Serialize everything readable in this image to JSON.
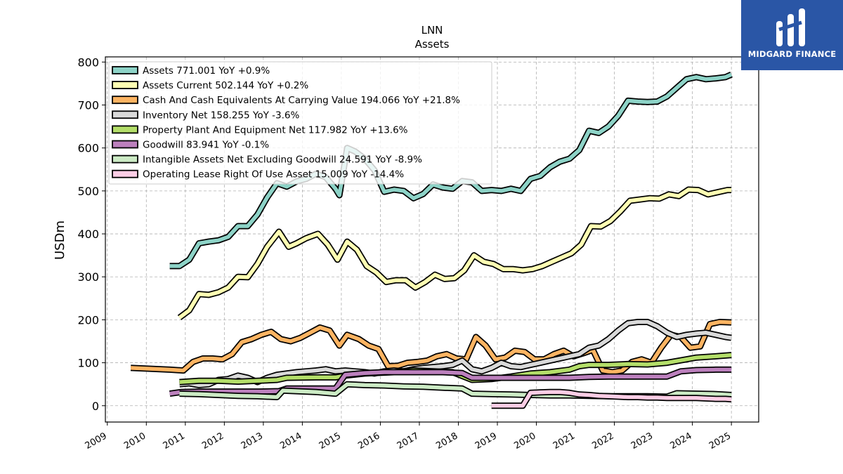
{
  "brand": {
    "name": "MIDGARD FINANCE",
    "color": "#2a56a6"
  },
  "chart_data": {
    "type": "line",
    "title": "LNN",
    "subtitle": "Assets",
    "ylabel": "USDm",
    "xlabel": "",
    "xlim": [
      2008.95,
      2025.7
    ],
    "ylim": [
      -38,
      812
    ],
    "yticks": [
      0,
      100,
      200,
      300,
      400,
      500,
      600,
      700,
      800
    ],
    "xticks": [
      "2009",
      "2010",
      "2011",
      "2012",
      "2013",
      "2014",
      "2015",
      "2016",
      "2017",
      "2018",
      "2019",
      "2020",
      "2021",
      "2022",
      "2023",
      "2024",
      "2025"
    ],
    "grid": true,
    "legend_position": "top-left",
    "series": [
      {
        "name": "Assets",
        "legend": "Assets  771.001 YoY +0.9%",
        "color": "#8dd3c7",
        "x": [
          2010.6,
          2010.85,
          2011.1,
          2011.35,
          2011.6,
          2011.85,
          2012.1,
          2012.35,
          2012.6,
          2012.85,
          2013.1,
          2013.35,
          2013.6,
          2013.85,
          2014.1,
          2014.35,
          2014.6,
          2014.85,
          2014.95,
          2015.15,
          2015.35,
          2015.6,
          2015.85,
          2016.1,
          2016.35,
          2016.6,
          2016.85,
          2017.1,
          2017.35,
          2017.6,
          2017.85,
          2018.1,
          2018.35,
          2018.6,
          2018.85,
          2019.1,
          2019.35,
          2019.6,
          2019.85,
          2020.1,
          2020.35,
          2020.6,
          2020.85,
          2021.1,
          2021.35,
          2021.6,
          2021.85,
          2022.1,
          2022.35,
          2022.6,
          2022.85,
          2023.1,
          2023.35,
          2023.6,
          2023.85,
          2024.1,
          2024.35,
          2024.6,
          2024.85,
          2025.0
        ],
        "y": [
          325,
          325,
          340,
          378,
          382,
          385,
          393,
          418,
          418,
          445,
          485,
          518,
          510,
          522,
          528,
          540,
          532,
          505,
          490,
          600,
          592,
          575,
          548,
          498,
          503,
          500,
          483,
          493,
          515,
          508,
          505,
          523,
          520,
          500,
          502,
          500,
          505,
          500,
          528,
          535,
          555,
          568,
          575,
          595,
          640,
          635,
          650,
          675,
          710,
          708,
          707,
          708,
          720,
          740,
          760,
          765,
          760,
          762,
          765,
          771
        ]
      },
      {
        "name": "Assets Current",
        "legend": "Assets Current  502.144 YoY +0.2%",
        "color": "#ffffb3",
        "x": [
          2010.85,
          2011.1,
          2011.35,
          2011.6,
          2011.85,
          2012.1,
          2012.35,
          2012.6,
          2012.85,
          2013.1,
          2013.4,
          2013.65,
          2013.85,
          2014.1,
          2014.4,
          2014.65,
          2014.9,
          2015.15,
          2015.4,
          2015.65,
          2015.9,
          2016.15,
          2016.4,
          2016.65,
          2016.9,
          2017.15,
          2017.4,
          2017.65,
          2017.9,
          2018.15,
          2018.4,
          2018.65,
          2018.9,
          2019.15,
          2019.4,
          2019.65,
          2019.9,
          2020.15,
          2020.4,
          2020.65,
          2020.9,
          2021.15,
          2021.4,
          2021.65,
          2021.9,
          2022.15,
          2022.4,
          2022.65,
          2022.9,
          2023.15,
          2023.4,
          2023.65,
          2023.9,
          2024.15,
          2024.4,
          2024.65,
          2024.9,
          2025.0
        ],
        "y": [
          205,
          222,
          260,
          258,
          264,
          275,
          300,
          299,
          330,
          370,
          405,
          370,
          378,
          390,
          400,
          375,
          340,
          382,
          363,
          325,
          310,
          288,
          292,
          292,
          275,
          288,
          305,
          295,
          297,
          315,
          350,
          335,
          330,
          318,
          318,
          315,
          318,
          325,
          335,
          345,
          355,
          375,
          418,
          417,
          430,
          452,
          477,
          480,
          483,
          482,
          492,
          488,
          503,
          502,
          492,
          497,
          502,
          502
        ]
      },
      {
        "name": "Cash And Cash Equivalents At Carrying Value",
        "legend": "Cash And Cash Equivalents At Carrying Value  194.066 YoY +21.8%",
        "color": "#fdb462",
        "x": [
          2009.6,
          2010.1,
          2010.6,
          2010.95,
          2011.2,
          2011.45,
          2011.7,
          2011.95,
          2012.2,
          2012.45,
          2012.7,
          2012.95,
          2013.2,
          2013.45,
          2013.7,
          2013.95,
          2014.2,
          2014.45,
          2014.7,
          2014.95,
          2015.15,
          2015.45,
          2015.7,
          2015.95,
          2016.2,
          2016.45,
          2016.7,
          2016.95,
          2017.2,
          2017.45,
          2017.7,
          2017.95,
          2018.2,
          2018.45,
          2018.7,
          2018.95,
          2019.2,
          2019.45,
          2019.7,
          2019.95,
          2020.2,
          2020.45,
          2020.7,
          2020.95,
          2021.2,
          2021.45,
          2021.7,
          2021.95,
          2022.2,
          2022.45,
          2022.7,
          2022.95,
          2023.2,
          2023.45,
          2023.7,
          2023.95,
          2024.2,
          2024.45,
          2024.7,
          2025.0
        ],
        "y": [
          88,
          86,
          84,
          82,
          102,
          110,
          110,
          108,
          120,
          148,
          155,
          165,
          172,
          155,
          150,
          158,
          170,
          182,
          175,
          140,
          165,
          155,
          140,
          132,
          92,
          93,
          100,
          102,
          105,
          115,
          120,
          110,
          108,
          160,
          140,
          108,
          112,
          128,
          125,
          108,
          108,
          120,
          128,
          115,
          122,
          130,
          82,
          78,
          82,
          102,
          108,
          100,
          135,
          165,
          160,
          135,
          138,
          190,
          195,
          194
        ]
      },
      {
        "name": "Inventory Net",
        "legend": "Inventory Net  158.255 YoY -3.6%",
        "color": "#d9d9d9",
        "x": [
          2010.85,
          2011.1,
          2011.35,
          2011.6,
          2011.85,
          2012.1,
          2012.35,
          2012.6,
          2012.85,
          2013.1,
          2013.35,
          2013.6,
          2013.85,
          2014.1,
          2014.35,
          2014.6,
          2014.85,
          2015.1,
          2015.35,
          2015.6,
          2015.85,
          2016.1,
          2016.35,
          2016.6,
          2016.85,
          2017.1,
          2017.35,
          2017.6,
          2017.85,
          2018.1,
          2018.35,
          2018.6,
          2018.85,
          2019.1,
          2019.35,
          2019.6,
          2019.85,
          2020.1,
          2020.35,
          2020.6,
          2020.85,
          2021.1,
          2021.35,
          2021.6,
          2021.85,
          2022.1,
          2022.35,
          2022.6,
          2022.85,
          2023.1,
          2023.35,
          2023.6,
          2023.85,
          2024.1,
          2024.35,
          2024.6,
          2024.85,
          2025.0
        ],
        "y": [
          50,
          52,
          48,
          50,
          60,
          62,
          70,
          65,
          55,
          65,
          72,
          75,
          78,
          80,
          82,
          85,
          80,
          82,
          80,
          78,
          75,
          80,
          82,
          80,
          85,
          88,
          90,
          92,
          95,
          105,
          85,
          80,
          88,
          100,
          92,
          90,
          95,
          100,
          105,
          110,
          115,
          120,
          135,
          140,
          155,
          175,
          192,
          195,
          195,
          185,
          170,
          160,
          165,
          168,
          170,
          165,
          160,
          158
        ]
      },
      {
        "name": "Property Plant And Equipment Net",
        "legend": "Property Plant And Equipment Net  117.982 YoY +13.6%",
        "color": "#b3de69",
        "x": [
          2010.85,
          2011.35,
          2011.85,
          2012.35,
          2012.85,
          2013.35,
          2013.6,
          2014.35,
          2014.85,
          2015.1,
          2015.6,
          2016.35,
          2016.85,
          2017.35,
          2017.85,
          2018.35,
          2018.85,
          2019.35,
          2019.85,
          2020.35,
          2020.85,
          2021.1,
          2021.35,
          2021.85,
          2022.35,
          2022.85,
          2023.35,
          2023.85,
          2024.1,
          2024.6,
          2025.0
        ],
        "y": [
          55,
          58,
          58,
          56,
          58,
          60,
          65,
          66,
          66,
          70,
          75,
          78,
          82,
          80,
          78,
          60,
          62,
          68,
          75,
          78,
          84,
          92,
          95,
          95,
          97,
          96,
          100,
          108,
          112,
          115,
          118
        ]
      },
      {
        "name": "Goodwill",
        "legend": "Goodwill  83.941 YoY -0.1%",
        "color": "#bc80bd",
        "x": [
          2010.6,
          2010.9,
          2011.4,
          2011.9,
          2012.4,
          2012.9,
          2013.4,
          2013.6,
          2014.4,
          2014.85,
          2015.1,
          2015.6,
          2016.1,
          2016.6,
          2017.1,
          2017.6,
          2018.1,
          2018.35,
          2018.85,
          2019.35,
          2019.85,
          2020.35,
          2020.85,
          2021.35,
          2021.85,
          2022.35,
          2022.85,
          2023.35,
          2023.7,
          2024.1,
          2024.6,
          2025.0
        ],
        "y": [
          28,
          32,
          33,
          33,
          33,
          33,
          34,
          40,
          40,
          40,
          72,
          76,
          78,
          78,
          78,
          78,
          76,
          65,
          65,
          65,
          65,
          65,
          65,
          67,
          68,
          68,
          68,
          68,
          80,
          83,
          84,
          84
        ]
      },
      {
        "name": "Intangible Assets Net Excluding Goodwill",
        "legend": "Intangible Assets Net Excluding Goodwill  24.591 YoY -8.9%",
        "color": "#ccebc5",
        "x": [
          2010.85,
          2011.35,
          2011.85,
          2012.35,
          2012.85,
          2013.35,
          2013.5,
          2014.35,
          2014.85,
          2015.15,
          2015.6,
          2016.1,
          2016.6,
          2017.1,
          2017.6,
          2018.1,
          2018.35,
          2018.85,
          2019.35,
          2019.85,
          2020.35,
          2020.85,
          2021.35,
          2021.85,
          2022.35,
          2022.85,
          2023.35,
          2023.6,
          2024.1,
          2024.6,
          2025.0
        ],
        "y": [
          28,
          27,
          25,
          23,
          22,
          20,
          35,
          32,
          28,
          50,
          48,
          47,
          45,
          44,
          42,
          40,
          28,
          27,
          26,
          25,
          24,
          24,
          23,
          22,
          22,
          22,
          21,
          29,
          28,
          27,
          25
        ]
      },
      {
        "name": "Operating Lease Right Of Use Asset",
        "legend": "Operating Lease Right Of Use Asset  15.009 YoY -14.4%",
        "color": "#fccde5",
        "x": [
          2018.85,
          2019.1,
          2019.4,
          2019.65,
          2019.85,
          2020.1,
          2020.35,
          2020.6,
          2020.85,
          2021.1,
          2021.35,
          2021.6,
          2021.85,
          2022.1,
          2022.35,
          2022.6,
          2022.85,
          2023.1,
          2023.35,
          2023.6,
          2023.85,
          2024.1,
          2024.35,
          2024.6,
          2024.85,
          2025.0
        ],
        "y": [
          0,
          0,
          0,
          0,
          30,
          31,
          32,
          32,
          30,
          26,
          25,
          23,
          22,
          21,
          20,
          20,
          19,
          19,
          18,
          18,
          18,
          18,
          17,
          16,
          16,
          15
        ]
      }
    ]
  }
}
